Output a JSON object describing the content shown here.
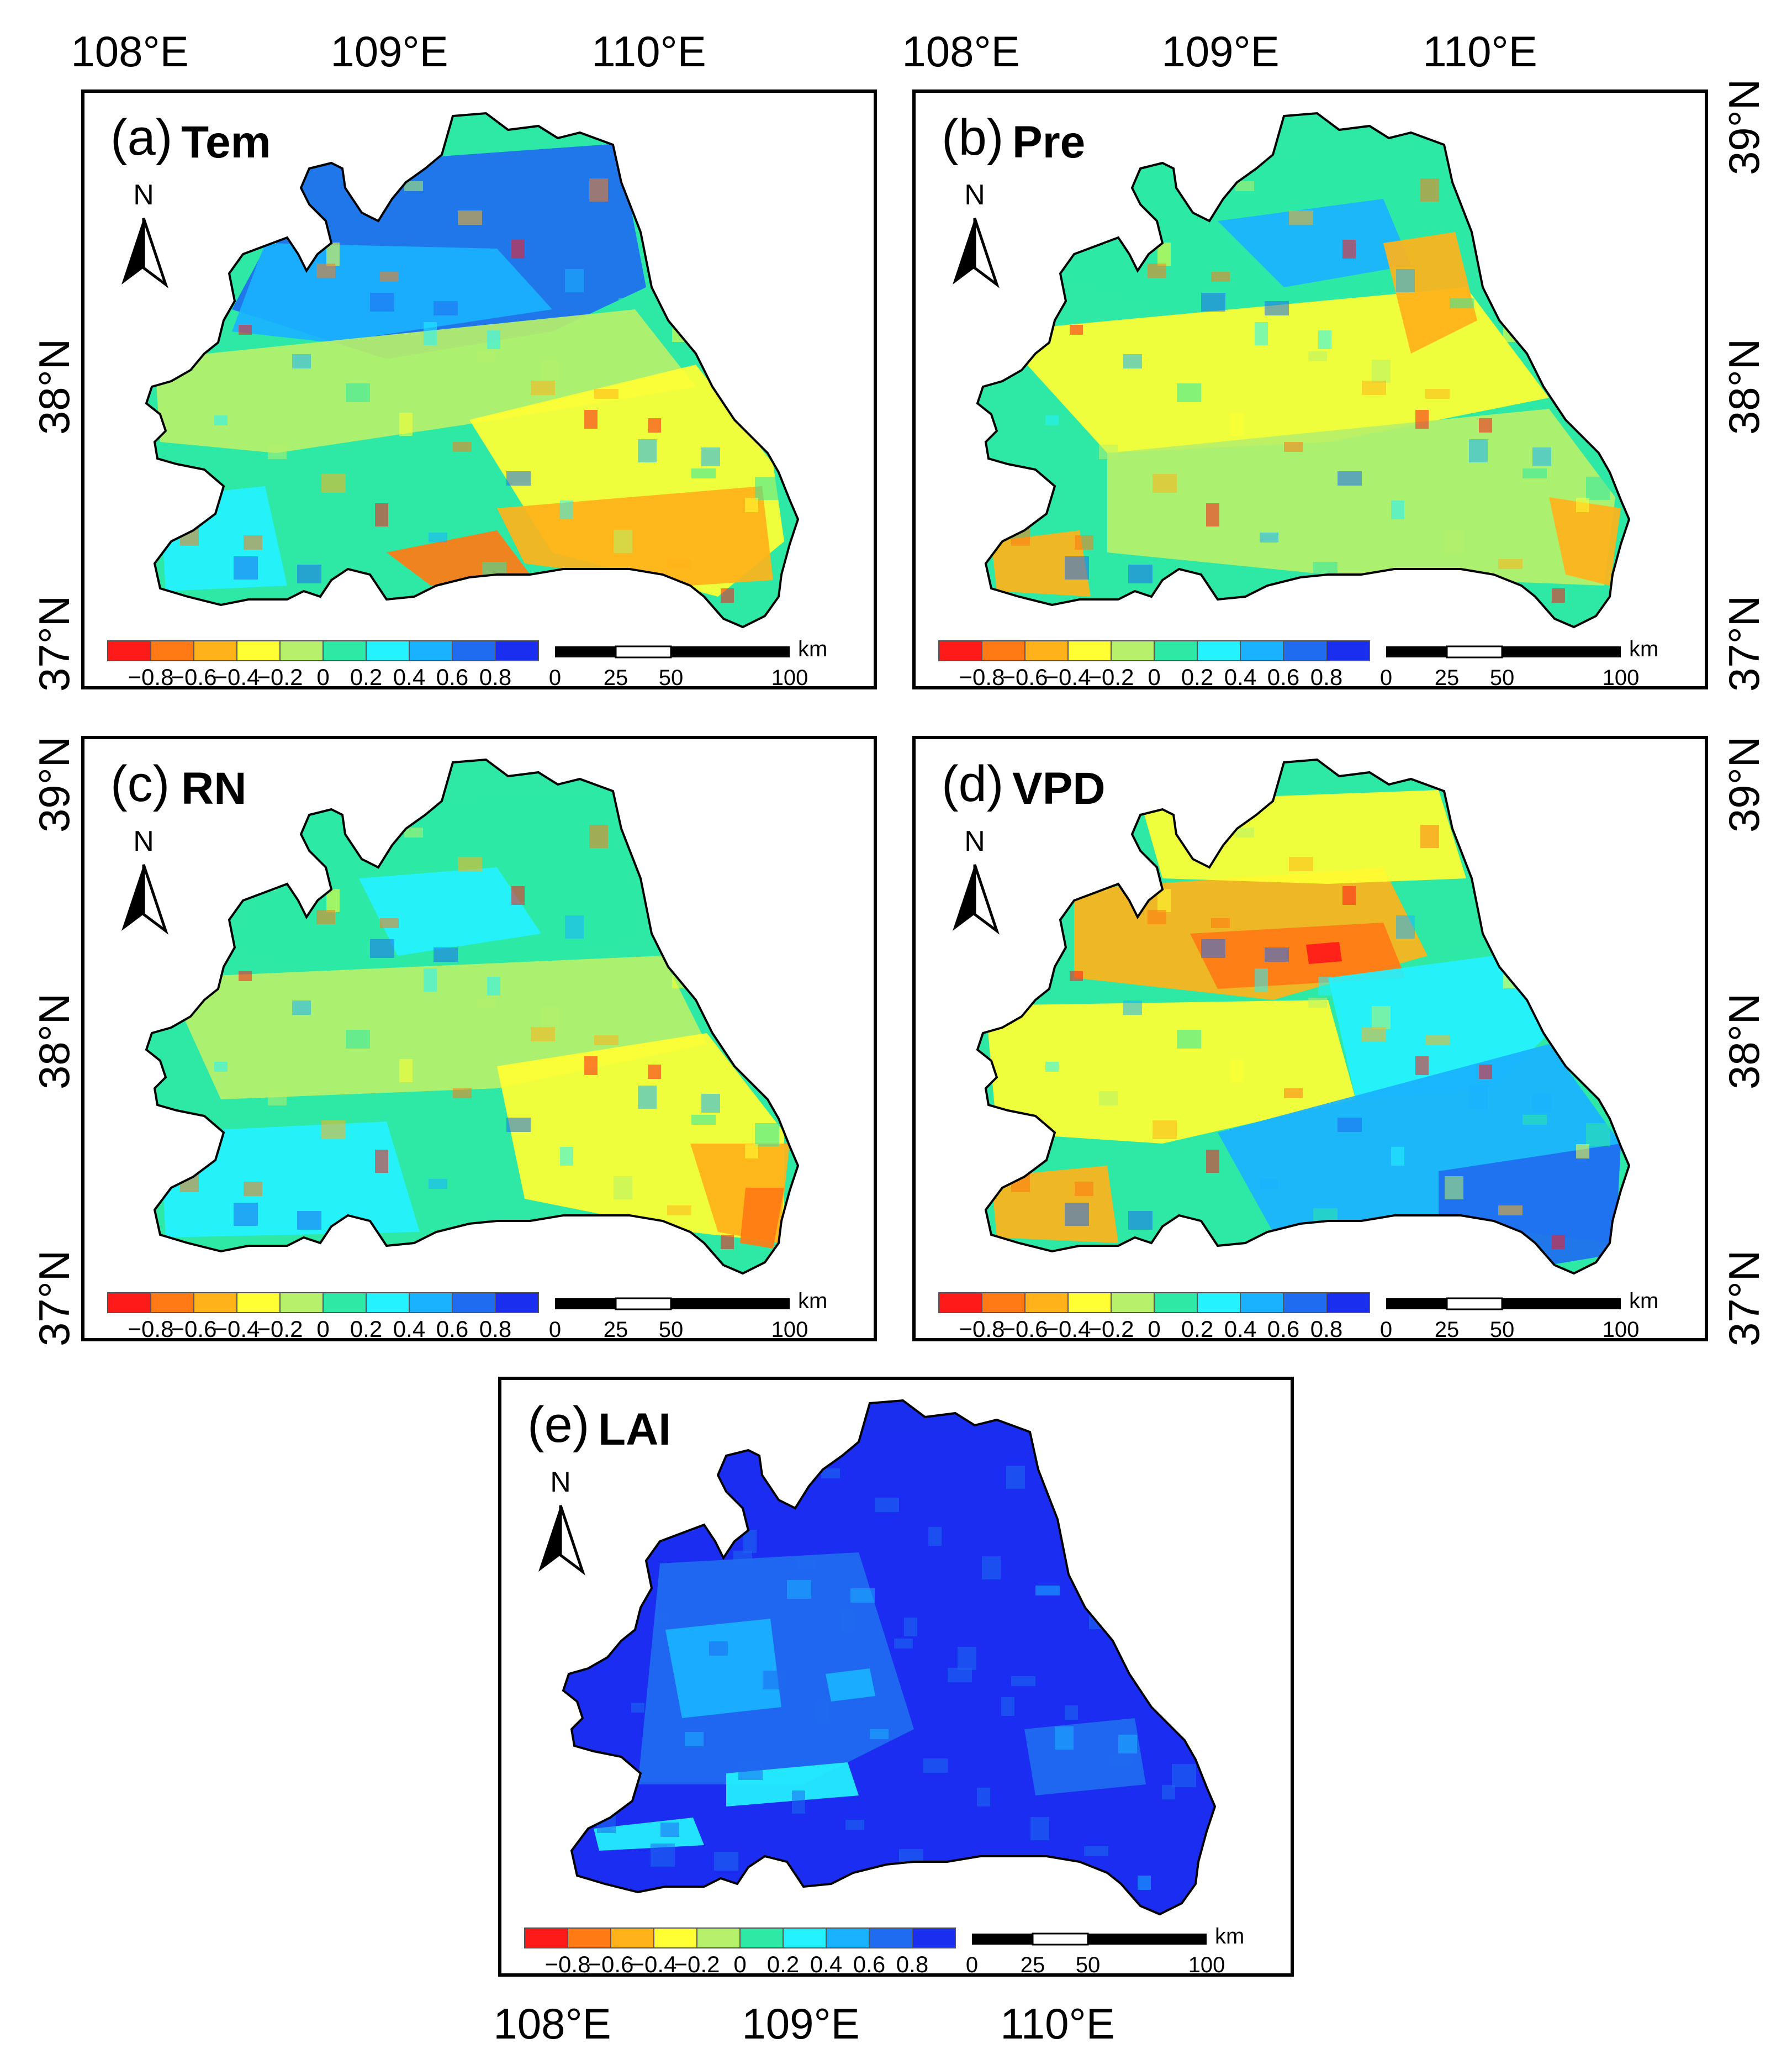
{
  "axes": {
    "lon_top": [
      "108°E",
      "109°E",
      "110°E"
    ],
    "lon_bottom": [
      "108°E",
      "109°E",
      "110°E"
    ],
    "lat_left_upper": [
      "38°N",
      "37°N"
    ],
    "lat_left_middle": [
      "39°N",
      "38°N",
      "37°N"
    ],
    "lat_right_upper": [
      "39°N",
      "38°N",
      "37°N"
    ],
    "lat_right_middle": [
      "39°N",
      "38°N",
      "37°N"
    ]
  },
  "north_arrow": {
    "letter": "N",
    "icon": "north-arrow-icon"
  },
  "colorbar": {
    "labels": [
      "−0.8",
      "−0.6",
      "−0.4",
      "−0.2",
      "0",
      "0.2",
      "0.4",
      "0.6",
      "0.8"
    ],
    "colors": [
      "#ff1a1a",
      "#ff7a14",
      "#ffb21a",
      "#ffff33",
      "#b7f06a",
      "#2ee8a6",
      "#24f2ff",
      "#1ab2ff",
      "#1f6cf0",
      "#1a2ef0"
    ]
  },
  "scalebar": {
    "unit": "km",
    "labels": [
      "0",
      "25",
      "50",
      "100"
    ]
  },
  "panels": [
    {
      "letter": "(a)",
      "variable": "Tem"
    },
    {
      "letter": "(b)",
      "variable": "Pre"
    },
    {
      "letter": "(c)",
      "variable": "RN"
    },
    {
      "letter": "(d)",
      "variable": "VPD"
    },
    {
      "letter": "(e)",
      "variable": "LAI"
    }
  ]
}
